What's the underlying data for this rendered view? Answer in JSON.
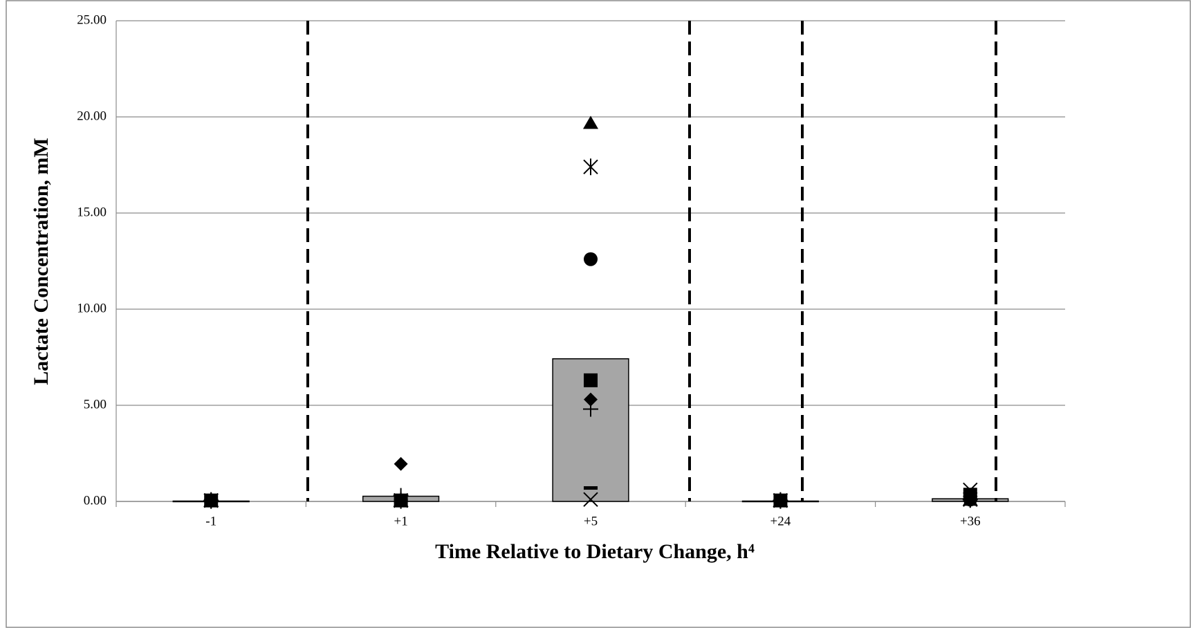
{
  "chart_data": {
    "type": "bar",
    "x_label": "Time Relative to Dietary Change, h⁴",
    "y_label": "Lactate Concentration, mM",
    "categories": [
      "-1",
      "+1",
      "+5",
      "+24",
      "+36"
    ],
    "values": [
      0.02,
      0.27,
      7.42,
      0.02,
      0.14
    ],
    "color": "#a6a6a6",
    "ylim": [
      0,
      25
    ],
    "yticks": [
      {
        "value": 0,
        "label": "0.00"
      },
      {
        "value": 5,
        "label": "5.00"
      },
      {
        "value": 10,
        "label": "10.00"
      },
      {
        "value": 15,
        "label": "15.00"
      },
      {
        "value": 20,
        "label": "20.00"
      },
      {
        "value": 25,
        "label": "25.00"
      }
    ],
    "grid": true,
    "series": [
      {
        "marker": "diamond",
        "color": "#000000",
        "values": [
          0.05,
          1.95,
          5.3,
          0.05,
          0.1
        ]
      },
      {
        "marker": "square",
        "color": "#000000",
        "values": [
          0.05,
          0.05,
          6.3,
          0.05,
          0.35
        ]
      },
      {
        "marker": "triangle",
        "color": "#000000",
        "values": [
          0.05,
          0.05,
          19.7,
          0.05,
          0.1
        ]
      },
      {
        "marker": "x",
        "color": "#000000",
        "values": [
          0.05,
          0.05,
          0.1,
          0.05,
          0.6
        ]
      },
      {
        "marker": "asterisk",
        "color": "#000000",
        "values": [
          0.05,
          0.05,
          17.4,
          0.05,
          0.1
        ]
      },
      {
        "marker": "circle",
        "color": "#000000",
        "values": [
          0.05,
          0.05,
          12.6,
          0.05,
          0.1
        ]
      },
      {
        "marker": "plus",
        "color": "#000000",
        "values": [
          0.05,
          0.3,
          4.8,
          0.05,
          0.1
        ]
      },
      {
        "marker": "dash",
        "color": "#000000",
        "values": [
          0.05,
          0.05,
          0.7,
          0.05,
          0.1
        ]
      }
    ]
  }
}
